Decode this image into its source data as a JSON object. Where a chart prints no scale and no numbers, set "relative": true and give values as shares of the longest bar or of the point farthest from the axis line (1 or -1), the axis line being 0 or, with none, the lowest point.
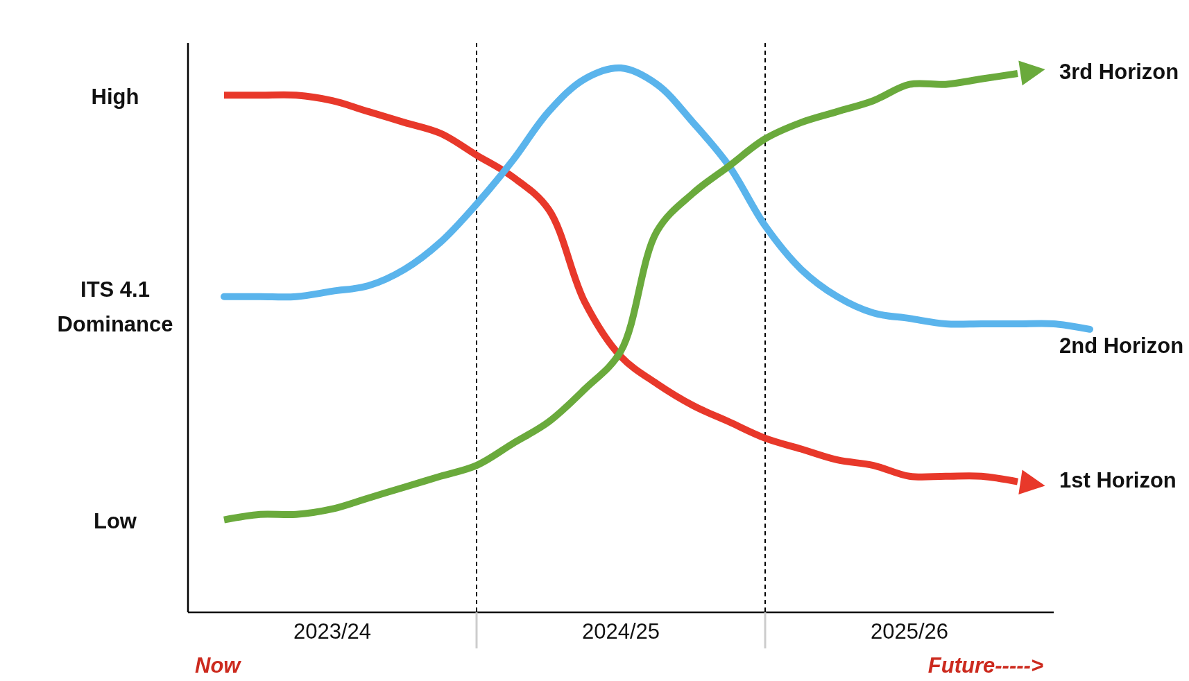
{
  "chart_data": {
    "type": "line",
    "relative": true,
    "categories": [
      null,
      null,
      null,
      null,
      "2023/24",
      null,
      null,
      null,
      null,
      null,
      null,
      null,
      "2024/25",
      null,
      null,
      null,
      null,
      null,
      null,
      null,
      "2025/26",
      null,
      null,
      null,
      null,
      null
    ],
    "grid": "x",
    "legend": "right",
    "line_style": "solid",
    "annotations": [
      "High",
      "ITS 4.1\nDominance",
      "Low",
      "Now",
      "Future----->"
    ],
    "series": [
      {
        "name": "1st Horizon",
        "color": "#e8382a",
        "values": [
          null,
          0.95,
          0.95,
          0.95,
          0.94,
          0.92,
          0.9,
          0.88,
          0.84,
          0.8,
          0.74,
          0.57,
          0.47,
          0.42,
          0.38,
          0.35,
          0.32,
          0.3,
          0.28,
          0.27,
          0.25,
          0.25,
          0.25,
          0.24,
          null,
          null
        ]
      },
      {
        "name": "2nd Horizon",
        "color": "#5ab4ec",
        "values": [
          null,
          0.58,
          0.58,
          0.58,
          0.59,
          0.6,
          0.63,
          0.68,
          0.75,
          0.83,
          0.92,
          0.98,
          1.0,
          0.97,
          0.9,
          0.82,
          0.71,
          0.63,
          0.58,
          0.55,
          0.54,
          0.53,
          0.53,
          0.53,
          0.53,
          0.52
        ]
      },
      {
        "name": "3rd Horizon",
        "color": "#6aaa3c",
        "values": [
          null,
          0.17,
          0.18,
          0.18,
          0.19,
          0.21,
          0.23,
          0.25,
          0.27,
          0.31,
          0.35,
          0.41,
          0.48,
          0.7,
          0.77,
          0.82,
          0.87,
          0.9,
          0.92,
          0.94,
          0.97,
          0.97,
          0.98,
          0.99,
          null,
          null
        ]
      }
    ]
  }
}
